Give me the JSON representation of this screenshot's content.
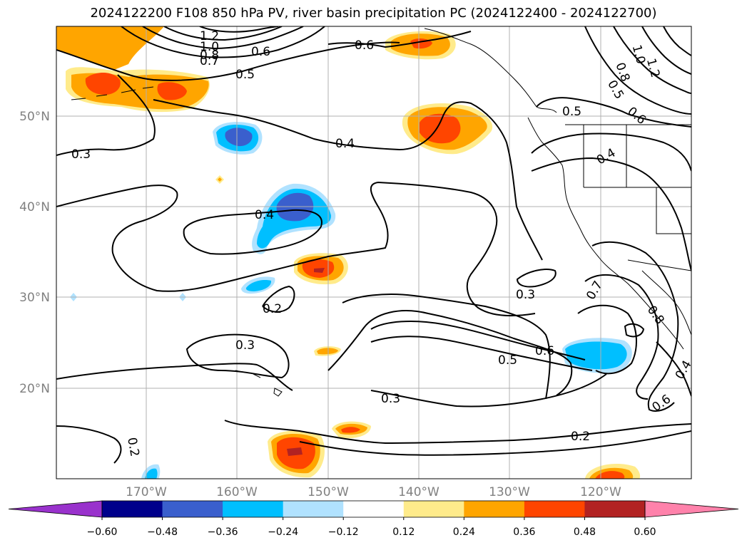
{
  "map": {
    "title": "2024122200 F108 850 hPa PV, river basin precipitation PC (2024122400 - 2024122700)",
    "lon_labels": [
      "170°W",
      "160°W",
      "150°W",
      "140°W",
      "130°W",
      "120°W"
    ],
    "lat_labels": [
      "50°N",
      "40°N",
      "30°N",
      "20°N"
    ],
    "contour_labels": [
      "1.2",
      "1.0",
      "0.8",
      "0.7",
      "0.6",
      "0.5",
      "0.6",
      "0.3",
      "0.4",
      "0.4",
      "0.2",
      "0.3",
      "0.3",
      "0.6",
      "0.5",
      "0.3",
      "0.2",
      "0.2",
      "0.5",
      "0.4",
      "0.6",
      "0.5",
      "0.8",
      "1.0",
      "1.2",
      "0.7",
      "0.8",
      "0.6",
      "0.4"
    ],
    "colorbar": {
      "ticks": [
        "−0.60",
        "−0.48",
        "−0.36",
        "−0.24",
        "−0.12",
        "0.12",
        "0.24",
        "0.36",
        "0.48",
        "0.60"
      ],
      "colors": [
        "#9932cc",
        "#00008b",
        "#3a5fcd",
        "#00bfff",
        "#b0e2ff",
        "#ffffff",
        "#ffeb8b",
        "#ffa500",
        "#ff4500",
        "#b22222",
        "#ff82ab"
      ]
    },
    "shading_colors": {
      "neg_light": "#b0e2ff",
      "neg_mid": "#00bfff",
      "neg_strong": "#3a5fcd",
      "pos_light": "#ffeb8b",
      "pos_mid": "#ffa500",
      "pos_strong": "#ff4500",
      "pos_max": "#b22222"
    }
  }
}
